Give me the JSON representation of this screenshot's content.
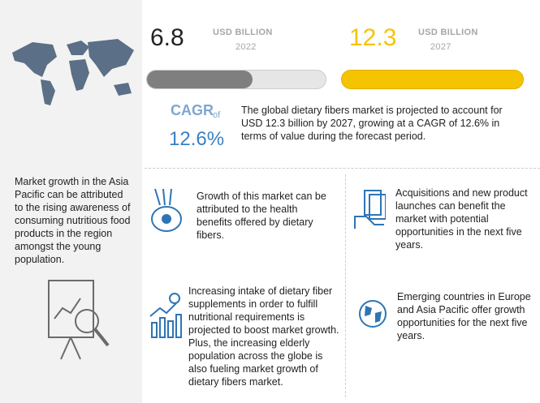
{
  "market": {
    "value_2022": "6.8",
    "unit_2022": "USD BILLION",
    "year_2022": "2022",
    "value_2027": "12.3",
    "unit_2027": "USD BILLION",
    "year_2027": "2027",
    "cagr_label": "CAGR",
    "cagr_of": "of",
    "cagr_value": "12.6%",
    "summary": [
      "The global dietary fibers market is projected to account for",
      "USD 12.3 billion by 2027, growing at a CAGR of 12.6% in",
      "terms of value during the forecast period."
    ]
  },
  "left_panel": {
    "text": [
      "Market growth in the Asia",
      "Pacific can be attributed",
      "to the rising awareness of",
      "consuming nutritious food",
      "products in the region",
      "amongst the young",
      "population."
    ]
  },
  "highlights": [
    {
      "text": [
        "Growth of this market can be",
        "attributed to the health",
        "benefits offered by dietary",
        "fibers."
      ]
    },
    {
      "text": [
        "Acquisitions and new product",
        "launches can benefit the",
        "market with potential",
        "opportunities in the next five",
        "years."
      ]
    },
    {
      "text": [
        "Increasing intake of dietary fiber",
        "supplements in order to fulfill",
        "nutritional requirements is",
        "projected to boost market growth.",
        "Plus, the increasing elderly",
        "population across the globe is",
        "also fueling market growth of",
        "dietary fibers market."
      ]
    },
    {
      "text": [
        "Emerging countries in Europe",
        "and Asia Pacific offer growth",
        "opportunities for the next five",
        "years."
      ]
    }
  ]
}
